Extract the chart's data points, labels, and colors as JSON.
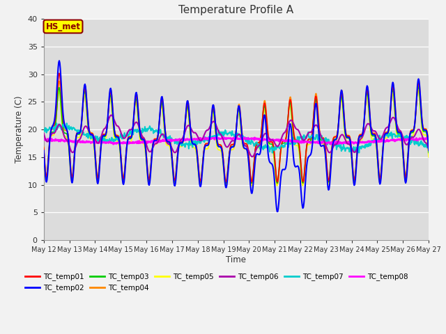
{
  "title": "Temperature Profile A",
  "xlabel": "Time",
  "ylabel": "Temperature (C)",
  "ylim": [
    0,
    40
  ],
  "yticks": [
    0,
    5,
    10,
    15,
    20,
    25,
    30,
    35,
    40
  ],
  "annotation_text": "HS_met",
  "annotation_color": "#8B0000",
  "annotation_bg": "#FFFF00",
  "plot_bg_color": "#DCDCDC",
  "fig_bg_color": "#F2F2F2",
  "series_colors": {
    "TC_temp01": "#FF0000",
    "TC_temp02": "#0000FF",
    "TC_temp03": "#00CC00",
    "TC_temp04": "#FF8800",
    "TC_temp05": "#FFFF00",
    "TC_temp06": "#AA00AA",
    "TC_temp07": "#00CCCC",
    "TC_temp08": "#FF00FF"
  },
  "series_lw": {
    "TC_temp01": 1.2,
    "TC_temp02": 1.5,
    "TC_temp03": 1.2,
    "TC_temp04": 1.2,
    "TC_temp05": 1.2,
    "TC_temp06": 1.5,
    "TC_temp07": 1.5,
    "TC_temp08": 2.0
  },
  "x_start": 12,
  "x_end": 27,
  "x_ticks": [
    12,
    13,
    14,
    15,
    16,
    17,
    18,
    19,
    20,
    21,
    22,
    23,
    24,
    25,
    26,
    27
  ],
  "x_tick_labels": [
    "May 12",
    "May 13",
    "May 14",
    "May 15",
    "May 16",
    "May 17",
    "May 18",
    "May 19",
    "May 20",
    "May 21",
    "May 22",
    "May 23",
    "May 24",
    "May 25",
    "May 26",
    "May 27"
  ],
  "figsize": [
    6.4,
    4.8
  ],
  "dpi": 100
}
